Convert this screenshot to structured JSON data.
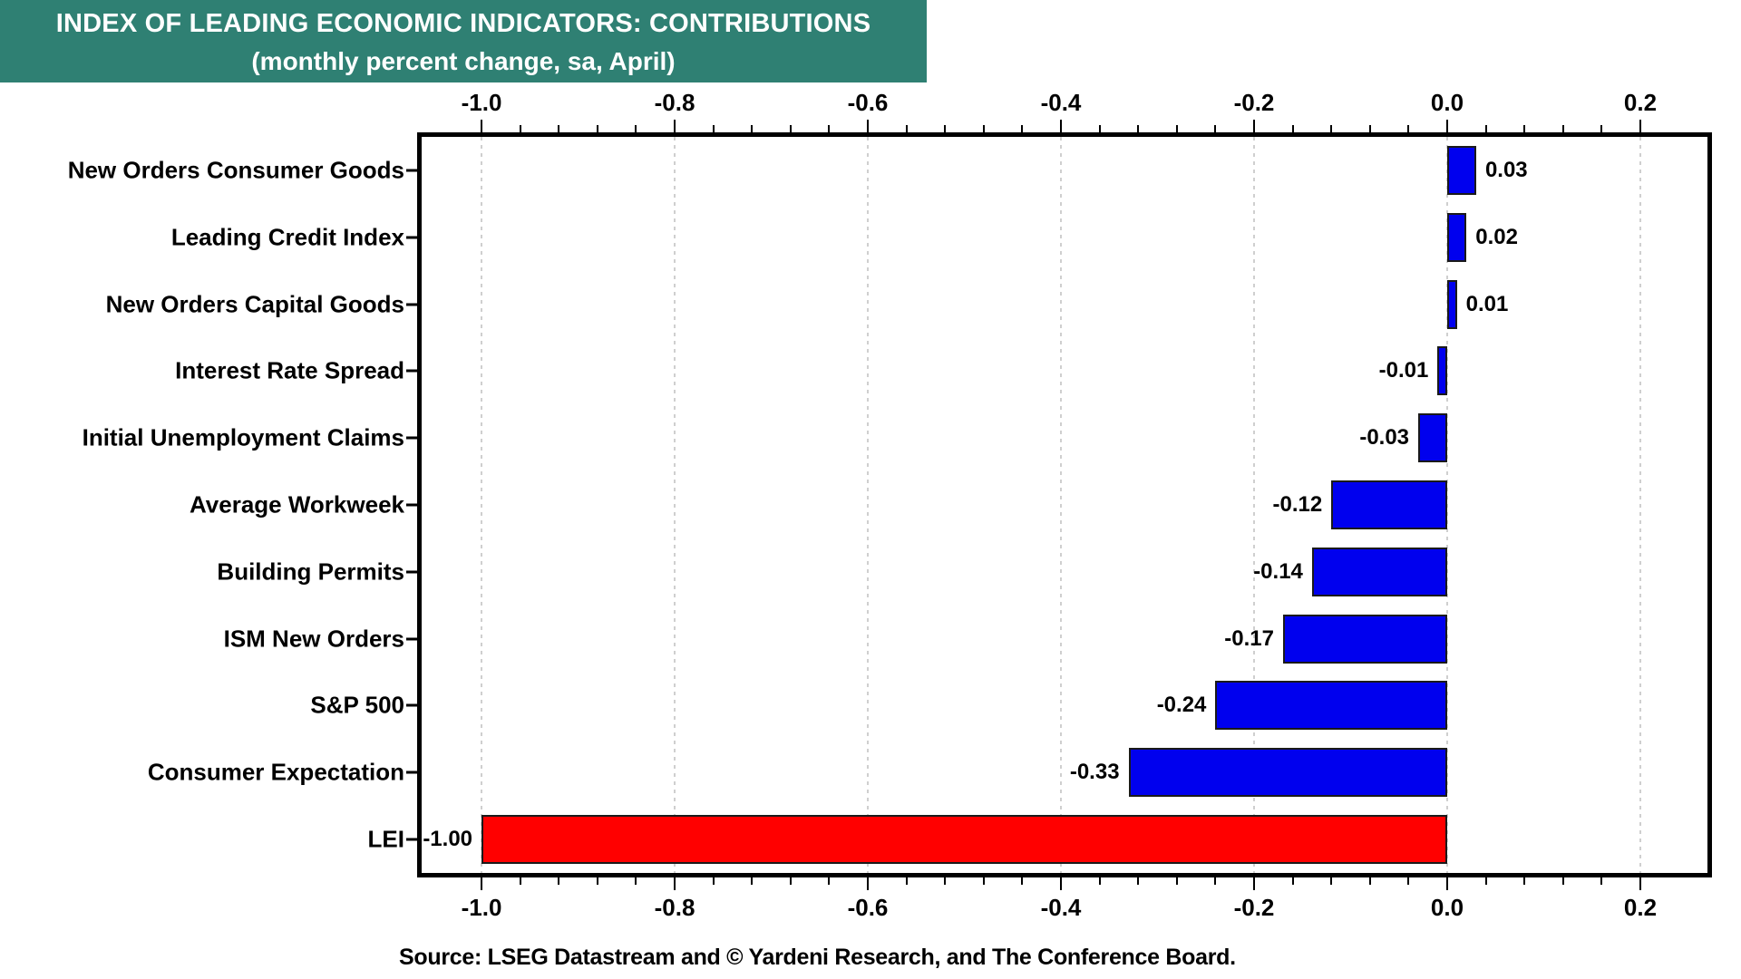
{
  "header": {
    "title": "INDEX OF LEADING ECONOMIC INDICATORS: CONTRIBUTIONS",
    "subtitle": "(monthly percent change, sa, April)",
    "bg_color": "#2F8073",
    "text_color": "#FFFFFF"
  },
  "chart_data": {
    "type": "bar",
    "orientation": "horizontal",
    "title": "INDEX OF LEADING ECONOMIC INDICATORS: CONTRIBUTIONS",
    "subtitle": "(monthly percent change, sa, April)",
    "categories": [
      "New Orders Consumer Goods",
      "Leading Credit Index",
      "New Orders Capital Goods",
      "Interest Rate Spread",
      "Initial Unemployment Claims",
      "Average Workweek",
      "Building Permits",
      "ISM New Orders",
      "S&P 500",
      "Consumer Expectation",
      "LEI"
    ],
    "values": [
      0.03,
      0.02,
      0.01,
      -0.01,
      -0.03,
      -0.12,
      -0.14,
      -0.17,
      -0.24,
      -0.33,
      -1.0
    ],
    "value_labels": [
      "0.03",
      "0.02",
      "0.01",
      "-0.01",
      "-0.03",
      "-0.12",
      "-0.14",
      "-0.17",
      "-0.24",
      "-0.33",
      "-1.00"
    ],
    "bar_colors": [
      "#0000EE",
      "#0000EE",
      "#0000EE",
      "#0000EE",
      "#0000EE",
      "#0000EE",
      "#0000EE",
      "#0000EE",
      "#0000EE",
      "#0000EE",
      "#FF0000"
    ],
    "xlim": [
      -1.062,
      0.2695
    ],
    "x_ticks_major": [
      -1.0,
      -0.8,
      -0.6,
      -0.4,
      -0.2,
      0.0,
      0.2
    ],
    "x_tick_labels": [
      "-1.0",
      "-0.8",
      "-0.6",
      "-0.4",
      "-0.2",
      "0.0",
      "0.2"
    ],
    "minor_tick_step": 0.04,
    "grid": "vertical dotted gridlines at major ticks, axis labels on top and bottom",
    "legend_position": "none"
  },
  "source": {
    "text": "Source: LSEG Datastream and © Yardeni Research, and The Conference Board."
  },
  "colors": {
    "bar_blue": "#0000EE",
    "bar_red": "#FF0000",
    "header_teal": "#2F8073",
    "gridline": "#CFCFCF",
    "axis": "#000000"
  }
}
